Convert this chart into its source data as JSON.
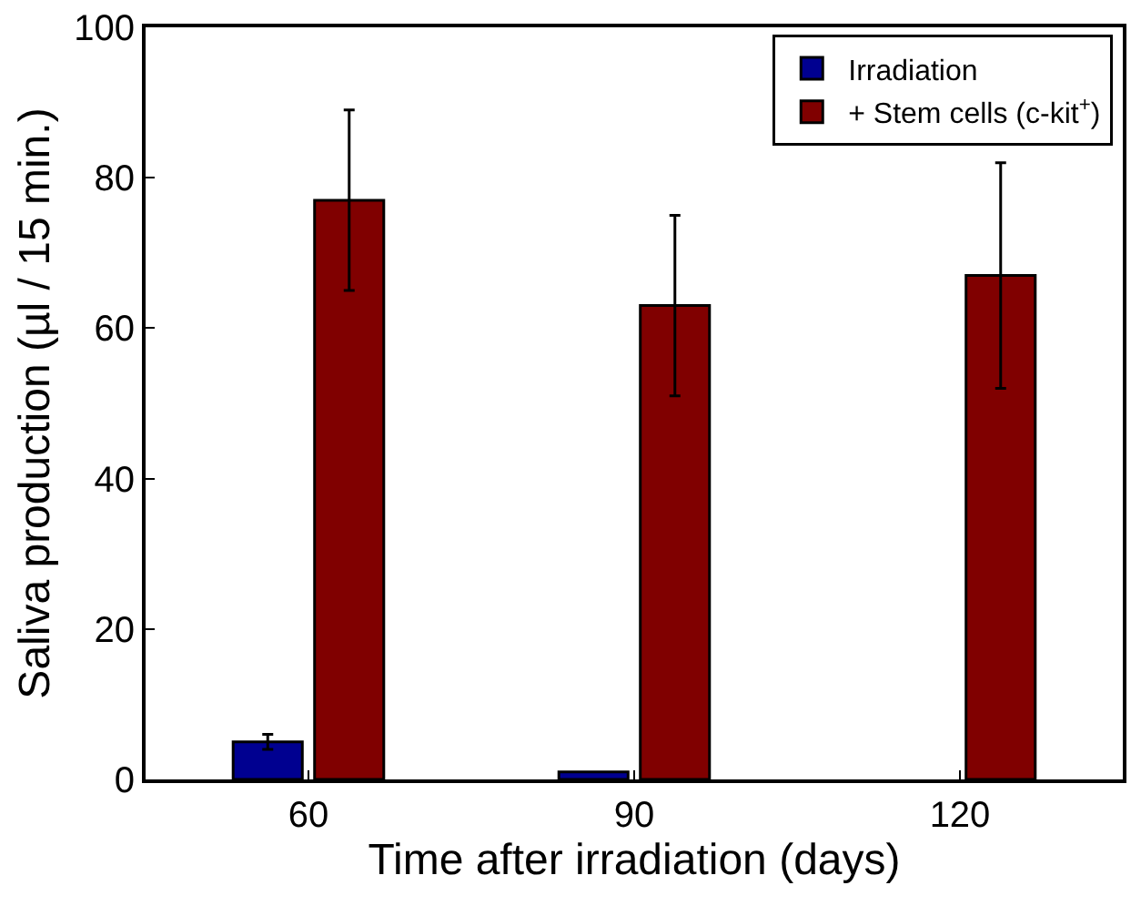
{
  "chart_data": {
    "type": "bar",
    "xlabel": "Time after irradiation (days)",
    "ylabel": "Saliva production (µl / 15 min.)",
    "categories": [
      "60",
      "90",
      "120"
    ],
    "series": [
      {
        "name": "Irradiation",
        "color": "#000090",
        "values": [
          5,
          1,
          null
        ],
        "errors": [
          1,
          null,
          null
        ]
      },
      {
        "name": "+ Stem cells (c-kit$^{+}$)",
        "color": "#800000",
        "values": [
          77,
          63,
          67
        ],
        "errors": [
          12,
          12,
          15
        ]
      }
    ],
    "ylim": [
      0,
      100
    ],
    "yticks": [
      0,
      20,
      40,
      60,
      80,
      100
    ],
    "grid": false,
    "legend": "top right"
  }
}
